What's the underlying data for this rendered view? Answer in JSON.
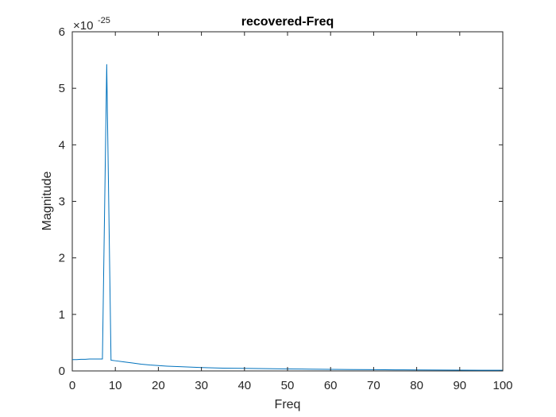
{
  "chart_data": {
    "type": "line",
    "title": "recovered-Freq",
    "xlabel": "Freq",
    "ylabel": "Magnitude",
    "xlim": [
      0,
      100
    ],
    "ylim": [
      0,
      6
    ],
    "y_multiplier_base": "×10",
    "y_multiplier_exponent": "-25",
    "xticks": [
      0,
      10,
      20,
      30,
      40,
      50,
      60,
      70,
      80,
      90,
      100
    ],
    "yticks": [
      0,
      1,
      2,
      3,
      4,
      5,
      6
    ],
    "grid": false,
    "box": true,
    "series": [
      {
        "color": "#0072bd",
        "x": [
          0,
          1,
          2,
          3,
          4,
          5,
          6,
          7,
          8,
          9,
          10,
          12,
          14,
          16,
          18,
          20,
          22,
          25,
          30,
          35,
          40,
          45,
          50,
          55,
          60,
          65,
          70,
          75,
          80,
          85,
          90,
          95,
          100
        ],
        "y": [
          0.2,
          0.2,
          0.205,
          0.205,
          0.21,
          0.21,
          0.21,
          0.21,
          5.42,
          0.19,
          0.18,
          0.16,
          0.14,
          0.12,
          0.105,
          0.095,
          0.085,
          0.075,
          0.06,
          0.05,
          0.045,
          0.04,
          0.035,
          0.032,
          0.028,
          0.025,
          0.022,
          0.02,
          0.018,
          0.016,
          0.014,
          0.013,
          0.012
        ]
      }
    ]
  }
}
